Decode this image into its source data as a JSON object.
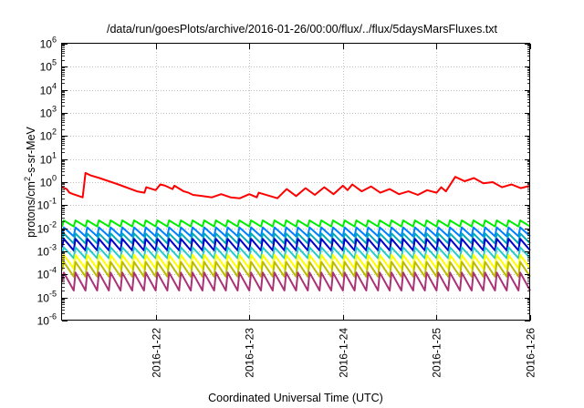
{
  "chart_data": {
    "type": "line",
    "title": "/data/run/goesPlots/archive/2016-01-26/00:00/flux/../flux/5daysMarsFluxes.txt",
    "xlabel": "Coordinated Universal Time (UTC)",
    "ylabel_base": "protons/cm",
    "ylabel_sup": "2",
    "ylabel_tail": "-s-sr-MeV",
    "yscale": "log",
    "ylim": [
      1e-06,
      1000000.0
    ],
    "xlim": [
      "2016-01-21 00:00",
      "2016-01-26 00:00"
    ],
    "grid": true,
    "y_ticks": [
      {
        "base": "10",
        "exp": "-6",
        "value": 1e-06
      },
      {
        "base": "10",
        "exp": "-5",
        "value": 1e-05
      },
      {
        "base": "10",
        "exp": "-4",
        "value": 0.0001
      },
      {
        "base": "10",
        "exp": "-3",
        "value": 0.001
      },
      {
        "base": "10",
        "exp": "-2",
        "value": 0.01
      },
      {
        "base": "10",
        "exp": "-1",
        "value": 0.1
      },
      {
        "base": "10",
        "exp": "0",
        "value": 1.0
      },
      {
        "base": "10",
        "exp": "1",
        "value": 10.0
      },
      {
        "base": "10",
        "exp": "2",
        "value": 100.0
      },
      {
        "base": "10",
        "exp": "3",
        "value": 1000.0
      },
      {
        "base": "10",
        "exp": "4",
        "value": 10000.0
      },
      {
        "base": "10",
        "exp": "5",
        "value": 100000.0
      },
      {
        "base": "10",
        "exp": "6",
        "value": 1000000.0
      }
    ],
    "x_ticks": [
      {
        "label": "2016-1-22",
        "day": 1
      },
      {
        "label": "2016-1-23",
        "day": 2
      },
      {
        "label": "2016-1-24",
        "day": 3
      },
      {
        "label": "2016-1-25",
        "day": 4
      },
      {
        "label": "2016-1-26",
        "day": 5
      }
    ],
    "series": [
      {
        "color": "#ff0000",
        "x_days": [
          0.0,
          0.05,
          0.08,
          0.12,
          0.18,
          0.22,
          0.25,
          0.3,
          0.4,
          0.6,
          0.8,
          0.88,
          0.9,
          1.0,
          1.05,
          1.1,
          1.18,
          1.2,
          1.3,
          1.35,
          1.4,
          1.5,
          1.6,
          1.7,
          1.8,
          1.9,
          2.0,
          2.08,
          2.1,
          2.3,
          2.4,
          2.5,
          2.6,
          2.7,
          2.8,
          2.9,
          3.0,
          3.05,
          3.1,
          3.2,
          3.3,
          3.4,
          3.5,
          3.6,
          3.7,
          3.8,
          3.9,
          4.0,
          4.05,
          4.1,
          4.2,
          4.3,
          4.4,
          4.5,
          4.6,
          4.7,
          4.8,
          4.9,
          5.0
        ],
        "y_values": [
          0.6,
          0.5,
          0.35,
          0.3,
          0.25,
          0.22,
          2.5,
          2.0,
          1.5,
          0.8,
          0.4,
          0.35,
          0.6,
          0.45,
          0.8,
          0.7,
          0.5,
          0.7,
          0.4,
          0.35,
          0.28,
          0.25,
          0.22,
          0.3,
          0.22,
          0.2,
          0.3,
          0.22,
          0.35,
          0.2,
          0.5,
          0.25,
          0.55,
          0.28,
          0.6,
          0.3,
          0.7,
          0.45,
          0.8,
          0.4,
          0.65,
          0.35,
          0.5,
          0.3,
          0.4,
          0.28,
          0.45,
          0.35,
          0.6,
          0.4,
          1.7,
          1.1,
          1.5,
          0.9,
          1.0,
          0.6,
          0.8,
          0.55,
          0.7
        ]
      },
      {
        "color": "#00ee00",
        "cycles": 40,
        "peak": 0.022,
        "trough": 0.012,
        "first": 0.012
      },
      {
        "color": "#0080ff",
        "cycles": 40,
        "peak": 0.011,
        "trough": 0.0045,
        "first": 0.005
      },
      {
        "color": "#00aabb",
        "cycles": 40,
        "peak": 0.006,
        "trough": 0.0022,
        "first": 0.003
      },
      {
        "color": "#0000cc",
        "cycles": 40,
        "peak": 0.0035,
        "trough": 0.0011,
        "first": 0.0015
      },
      {
        "color": "#22cccc",
        "cycles": 40,
        "peak": 0.0015,
        "trough": 0.0005,
        "first": 0.0008
      },
      {
        "color": "#ffff00",
        "cycles": 40,
        "peak": 0.0007,
        "trough": 0.00018,
        "first": 0.0003
      },
      {
        "color": "#bbbb00",
        "cycles": 40,
        "peak": 0.00035,
        "trough": 8e-05,
        "first": 0.00015
      },
      {
        "color": "#aa3377",
        "cycles": 40,
        "peak": 0.00012,
        "trough": 2e-05,
        "first": 5e-05
      }
    ]
  }
}
